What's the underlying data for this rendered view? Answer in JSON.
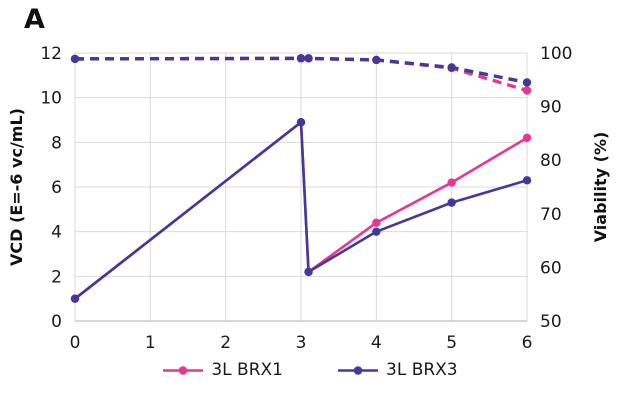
{
  "panel_label": "A",
  "chart_data": {
    "type": "line",
    "title": "",
    "x_axis": {
      "label": "",
      "min": 0,
      "max": 6,
      "ticks": [
        "0",
        "1",
        "2",
        "3",
        "4",
        "5",
        "6"
      ]
    },
    "left_axis": {
      "label": "VCD (E=-6 vc/mL)",
      "min": 0,
      "max": 12,
      "ticks": [
        "0",
        "2",
        "4",
        "6",
        "8",
        "10",
        "12"
      ]
    },
    "right_axis": {
      "label": "Viability (%)",
      "min": 50,
      "max": 100,
      "ticks": [
        "50",
        "60",
        "70",
        "80",
        "90",
        "100"
      ]
    },
    "grid_color": "#D9D9D9",
    "axis_line_color": "#BFBFBF",
    "text_color": "#1a1a1a",
    "series": [
      {
        "name": "3L BRX1 VCD",
        "axis": "left",
        "dash": false,
        "color": "#E8378F",
        "x": [
          0,
          3,
          3.1,
          4,
          5,
          6
        ],
        "y": [
          1.0,
          8.9,
          2.2,
          4.4,
          6.2,
          8.2
        ]
      },
      {
        "name": "3L BRX3 VCD",
        "axis": "left",
        "dash": false,
        "color": "#45389B",
        "x": [
          0,
          3,
          3.1,
          4,
          5,
          6
        ],
        "y": [
          1.0,
          8.9,
          2.2,
          4.0,
          5.3,
          6.3
        ]
      },
      {
        "name": "3L BRX1 Viability",
        "axis": "right",
        "dash": true,
        "color": "#E8378F",
        "x": [
          0,
          3,
          3.1,
          4,
          5,
          6
        ],
        "y": [
          98.9,
          99.0,
          99.0,
          98.7,
          97.2,
          93.0
        ]
      },
      {
        "name": "3L BRX3 Viability",
        "axis": "right",
        "dash": true,
        "color": "#45389B",
        "x": [
          0,
          3,
          3.1,
          4,
          5,
          6
        ],
        "y": [
          98.9,
          99.0,
          99.0,
          98.7,
          97.3,
          94.5
        ]
      }
    ],
    "legend": [
      {
        "label": "3L BRX1",
        "color": "#E8378F"
      },
      {
        "label": "3L BRX3",
        "color": "#45389B"
      }
    ]
  }
}
